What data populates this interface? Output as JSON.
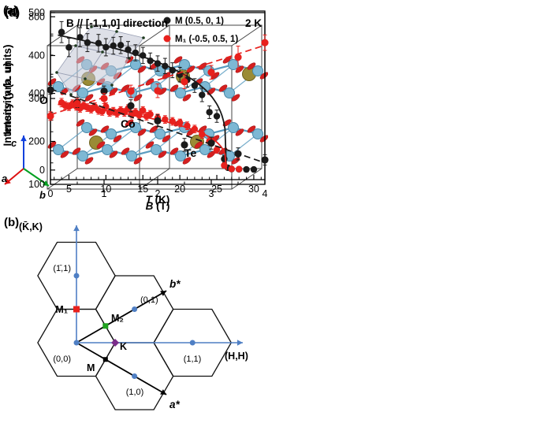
{
  "panel_a": {
    "label": "(a)",
    "atom_o": "O",
    "atom_co": "Co",
    "atom_te": "Te",
    "axis_a": "a",
    "axis_b": "b",
    "axis_c": "c"
  },
  "panel_b": {
    "label": "(b)",
    "axis_vertical": "(K̄,K)",
    "axis_horizontal": "(H,H)",
    "vector_b_star": "b*",
    "vector_a_star": "a*",
    "point_m11": "(1̄,1)",
    "point_01": "(0,1)",
    "point_00": "(0,0)",
    "point_11": "(1,1)",
    "point_10": "(1,0)",
    "label_m1": "M₁",
    "label_m2": "M₂",
    "label_k": "K",
    "label_m": "M"
  },
  "panel_c": {
    "label": "(c)"
  },
  "panel_d": {
    "label": "(d)"
  },
  "colors": {
    "reciprocal_axis_blue": "#4f7fc4",
    "m1_red": "#e8211d",
    "m2_green": "#1fa21f",
    "k_purple": "#7b2d8b",
    "series_black": "#1a1a1a",
    "series_red": "#e8211d",
    "co_blue": "#7db8d4",
    "co_label": "#64aecd",
    "te_olive": "#9a8b35",
    "te_label": "#8f7f2f",
    "o_red": "#d42020",
    "o_label": "#2c4a2c",
    "axis_a_red": "#dd1111",
    "axis_b_green": "#00a020",
    "axis_c_blue": "#1040dd"
  },
  "chart_data": [
    {
      "id": "chart-c",
      "type": "scatter",
      "xlabel_italic": "T",
      "xlabel_rest": " (K)",
      "ylabel": "Intensity (arb. units)",
      "xlim": [
        2.5,
        31.5
      ],
      "ylim": [
        -50,
        830
      ],
      "xticks": [
        5,
        10,
        15,
        20,
        25,
        30
      ],
      "yticks": [
        0,
        400,
        800
      ],
      "xminor_step": 1,
      "yminor_step": 100,
      "legend": true,
      "series": [
        {
          "name": "M (0.5, 0, 1)",
          "color": "#1a1a1a",
          "x": [
            4,
            5,
            6.5,
            7.5,
            9,
            10,
            11,
            12,
            13,
            14,
            15,
            16,
            17,
            18,
            19,
            20,
            21,
            22,
            23,
            24,
            25,
            26,
            26.5,
            27,
            28,
            29,
            30
          ],
          "y": [
            720,
            640,
            693,
            665,
            662,
            641,
            649,
            652,
            628,
            612,
            598,
            570,
            556,
            543,
            521,
            498,
            470,
            441,
            392,
            302,
            281,
            58,
            12,
            5,
            4,
            3,
            3
          ],
          "err": [
            55,
            48,
            50,
            47,
            46,
            45,
            44,
            44,
            43,
            42,
            42,
            41,
            40,
            40,
            39,
            38,
            37,
            36,
            35,
            33,
            32,
            18,
            10,
            8,
            8,
            8,
            8
          ],
          "fit": {
            "type": "order-parameter",
            "I0": 730,
            "Tc": 26.3,
            "exponent": 0.25
          }
        },
        {
          "name": "M₁ (-0.5, 0.5, 1)",
          "color": "#e8211d",
          "x": [
            4,
            4.5,
            5,
            5.5,
            6,
            6.5,
            7,
            7.5,
            8,
            8.5,
            9,
            9.5,
            10,
            10.5,
            11,
            11.5,
            12,
            12.5,
            13,
            13.5,
            14,
            14.5,
            15,
            15.5,
            16,
            17,
            18,
            19,
            20,
            21,
            22,
            23,
            24,
            25,
            26,
            27,
            28
          ],
          "y": [
            352,
            337,
            331,
            346,
            332,
            322,
            337,
            326,
            318,
            331,
            311,
            306,
            331,
            301,
            307,
            296,
            311,
            301,
            321,
            291,
            301,
            286,
            311,
            281,
            291,
            272,
            264,
            254,
            246,
            231,
            214,
            186,
            151,
            106,
            24,
            6,
            5
          ],
          "err": [
            22,
            20,
            20,
            20,
            20,
            20,
            20,
            20,
            20,
            20,
            20,
            20,
            20,
            20,
            20,
            20,
            20,
            20,
            20,
            20,
            20,
            20,
            20,
            20,
            20,
            20,
            20,
            20,
            20,
            20,
            20,
            20,
            20,
            18,
            12,
            8,
            8
          ],
          "fit": {
            "type": "order-parameter",
            "I0": 358,
            "Tc": 26.3,
            "exponent": 0.3
          }
        }
      ]
    },
    {
      "id": "chart-d",
      "type": "scatter",
      "annotations": [
        "B // [-1,1,0] direction",
        "2 K"
      ],
      "xlabel_italic": "B",
      "xlabel_rest": " (T)",
      "ylabel": "Intensity (a. u)",
      "xlim": [
        0,
        4
      ],
      "ylim": [
        100,
        500
      ],
      "xticks": [
        0,
        1,
        2,
        3,
        4
      ],
      "yticks": [
        100,
        200,
        300,
        400,
        500
      ],
      "xminor_step": 0.5,
      "yminor_step": 50,
      "legend": false,
      "series": [
        {
          "name": "M",
          "color": "#1a1a1a",
          "x": [
            0,
            0.5,
            1,
            1.5,
            2,
            2.5,
            3,
            3.5,
            4
          ],
          "y": [
            320,
            291,
            317,
            283,
            248,
            192,
            196,
            171,
            157
          ],
          "err": [
            10,
            12,
            12,
            14,
            14,
            15,
            14,
            14,
            12
          ],
          "trend": {
            "x1": 0,
            "y1": 322,
            "x2": 4,
            "y2": 150
          }
        },
        {
          "name": "M₁",
          "color": "#e8211d",
          "x": [
            0,
            0.5,
            1,
            1.5,
            2,
            2.5,
            3,
            3.5,
            4
          ],
          "y": [
            259,
            288,
            300,
            317,
            318,
            339,
            361,
            396,
            430
          ],
          "err": [
            10,
            12,
            12,
            14,
            16,
            16,
            16,
            26,
            18
          ],
          "trend": {
            "x1": 0,
            "y1": 262,
            "x2": 4,
            "y2": 424
          }
        }
      ]
    }
  ]
}
